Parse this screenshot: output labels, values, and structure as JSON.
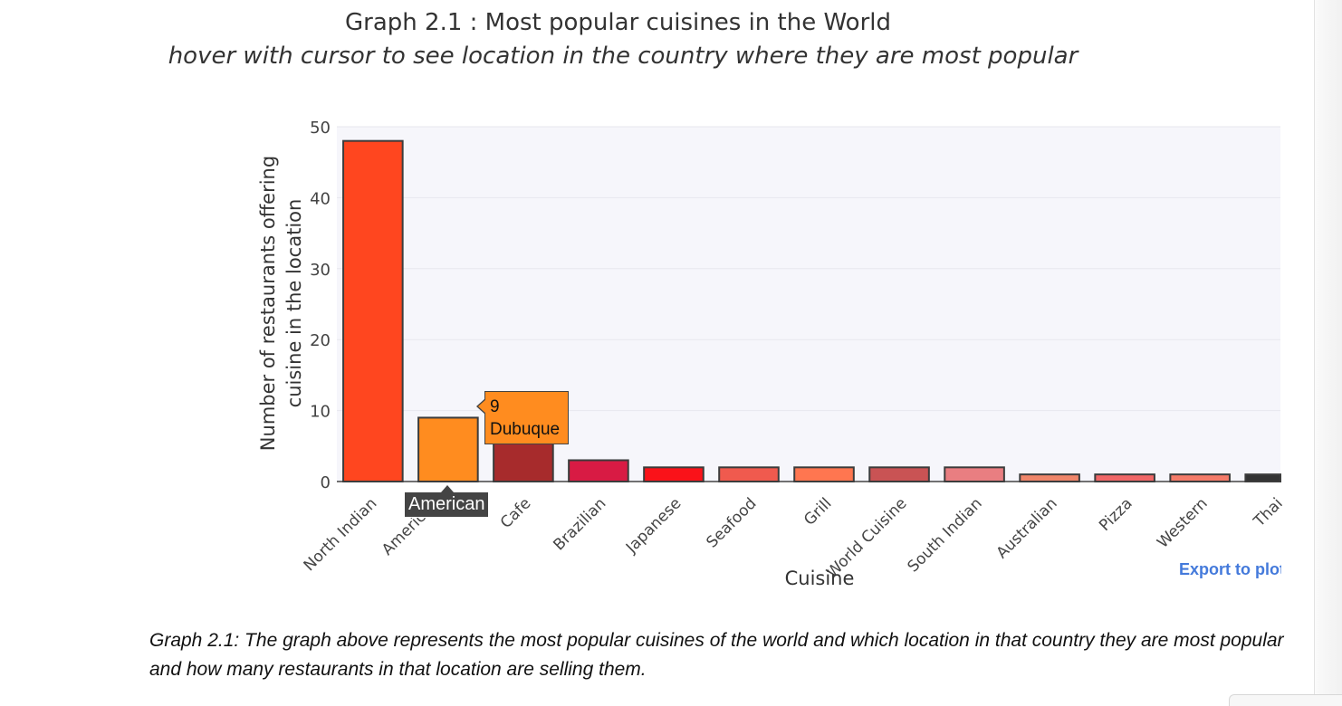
{
  "page": {
    "title": "Graph 2.1 : Most popular cuisines in the World",
    "subtitle": "hover with cursor to see location in the country where they are most popular",
    "export_label": "Export to plot.ly",
    "caption": "Graph 2.1: The graph above represents the most popular cuisines of the world and which location in that country they are most popular and how many restaurants in that location are selling them."
  },
  "chart_data": {
    "type": "bar",
    "title": "Graph 2.1 : Most popular cuisines in the World",
    "subtitle": "hover with cursor to see location in the country where they are most popular",
    "xlabel": "Cuisine",
    "ylabel": "Number of restaurants offering cuisine in the location",
    "ylim": [
      0,
      50
    ],
    "y_ticks": [
      0,
      10,
      20,
      30,
      40,
      50
    ],
    "grid": true,
    "categories": [
      "North Indian",
      "American",
      "Cafe",
      "Brazilian",
      "Japanese",
      "Seafood",
      "Grill",
      "World Cuisine",
      "South Indian",
      "Australian",
      "Pizza",
      "Western",
      "Thai"
    ],
    "values": [
      48,
      9,
      6,
      3,
      2,
      2,
      2,
      2,
      2,
      1,
      1,
      1,
      1
    ],
    "colors": [
      "#ff461f",
      "#ff8c1f",
      "#a72b2c",
      "#d81b44",
      "#fa1219",
      "#f05a4e",
      "#ff7650",
      "#c95354",
      "#e97e81",
      "#f0866a",
      "#f16767",
      "#f57b69",
      "#333333"
    ]
  },
  "tooltip": {
    "x_label": "American",
    "value": "9",
    "location": "Dubuque"
  },
  "colors": {
    "plot_background": "#f6f6fb",
    "gridline": "#e7e7ee",
    "export_link": "#447adb"
  }
}
